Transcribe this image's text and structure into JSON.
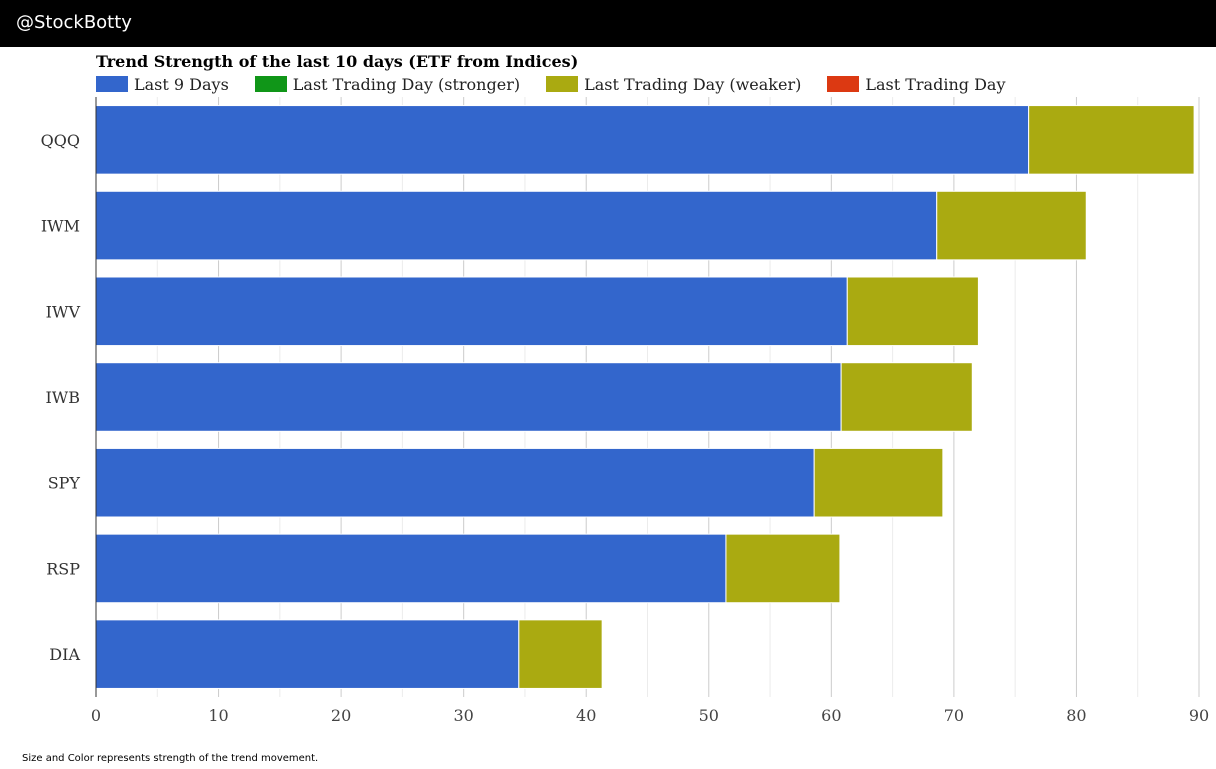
{
  "header": {
    "handle": "@StockBotty"
  },
  "footnote": "Size and Color represents strength of the trend movement.",
  "legend": [
    {
      "label": "Last 9 Days",
      "color": "#3366cc"
    },
    {
      "label": "Last Trading Day (stronger)",
      "color": "#109618"
    },
    {
      "label": "Last Trading Day (weaker)",
      "color": "#aaaa11"
    },
    {
      "label": "Last Trading Day",
      "color": "#dc3912"
    }
  ],
  "chart_data": {
    "type": "bar",
    "orientation": "horizontal",
    "stacked": true,
    "title": "Trend Strength of the last 10 days (ETF from Indices)",
    "xlabel": "",
    "ylabel": "",
    "xlim": [
      0,
      90
    ],
    "xticks": [
      0,
      10,
      20,
      30,
      40,
      50,
      60,
      70,
      80,
      90
    ],
    "grid": true,
    "legend_position": "top-left",
    "categories": [
      "QQQ",
      "IWM",
      "IWV",
      "IWB",
      "SPY",
      "RSP",
      "DIA"
    ],
    "series": [
      {
        "name": "Last 9 Days",
        "color": "#3366cc",
        "values": [
          76.1,
          68.6,
          61.3,
          60.8,
          58.6,
          51.4,
          34.5
        ]
      },
      {
        "name": "Last Trading Day (weaker)",
        "color": "#aaaa11",
        "values": [
          13.5,
          12.2,
          10.7,
          10.7,
          10.5,
          9.3,
          6.8
        ]
      }
    ]
  }
}
